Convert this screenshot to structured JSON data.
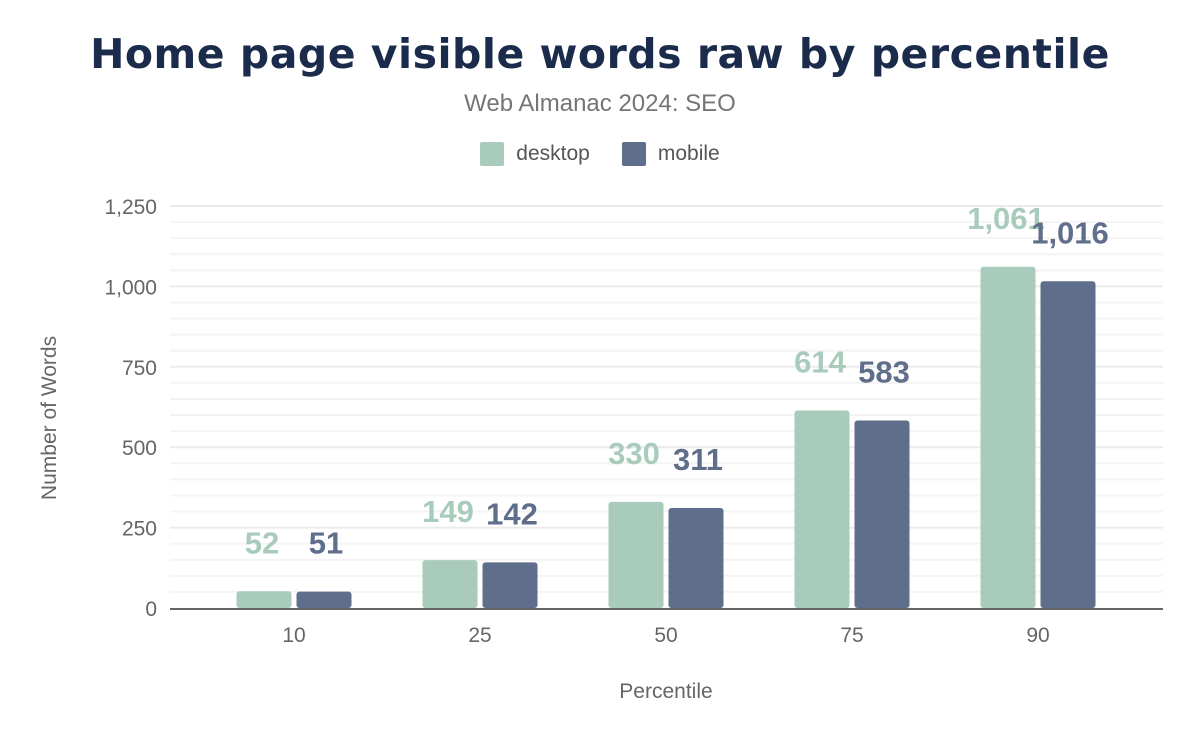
{
  "chart_data": {
    "type": "bar",
    "title": "Home page visible words raw by percentile",
    "subtitle": "Web Almanac 2024: SEO",
    "xlabel": "Percentile",
    "ylabel": "Number of Words",
    "categories": [
      "10",
      "25",
      "50",
      "75",
      "90"
    ],
    "series": [
      {
        "name": "desktop",
        "values": [
          52,
          149,
          330,
          614,
          1061
        ],
        "labels": [
          "52",
          "149",
          "330",
          "614",
          "1,061"
        ],
        "color": "#a8cbbb"
      },
      {
        "name": "mobile",
        "values": [
          51,
          142,
          311,
          583,
          1016
        ],
        "labels": [
          "51",
          "142",
          "311",
          "583",
          "1,016"
        ],
        "color": "#5f6e8a"
      }
    ],
    "ylim": [
      0,
      1250
    ],
    "yticks": [
      0,
      250,
      500,
      750,
      1000,
      1250
    ],
    "ytick_labels": [
      "0",
      "250",
      "500",
      "750",
      "1,000",
      "1,250"
    ],
    "grid": true,
    "legend": "top-center"
  }
}
